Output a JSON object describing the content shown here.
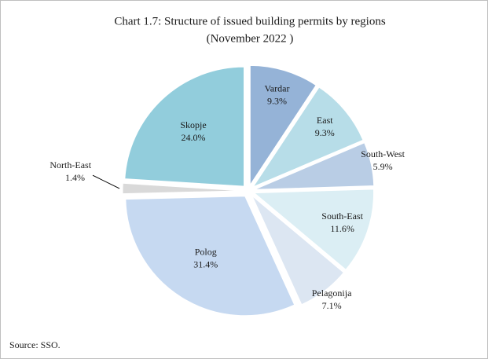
{
  "chart_data": {
    "type": "pie",
    "title": "Chart 1.7: Structure of issued building permits by regions",
    "subtitle": "(November 2022 )",
    "categories": [
      "Vardar",
      "East",
      "South-West",
      "South-East",
      "Pelagonija",
      "Polog",
      "North-East",
      "Skopje"
    ],
    "values": [
      9.3,
      9.3,
      5.9,
      11.6,
      7.1,
      31.4,
      1.4,
      24.0
    ],
    "value_labels": [
      "9.3%",
      "9.3%",
      "5.9%",
      "11.6%",
      "7.1%",
      "31.4%",
      "1.4%",
      "24.0%"
    ],
    "colors": [
      "#95b3d7",
      "#b7dde8",
      "#b9cde5",
      "#dbeef4",
      "#dce6f2",
      "#c6d9f1",
      "#d9d9d9",
      "#92cddc"
    ],
    "source": "Source: SSO."
  }
}
